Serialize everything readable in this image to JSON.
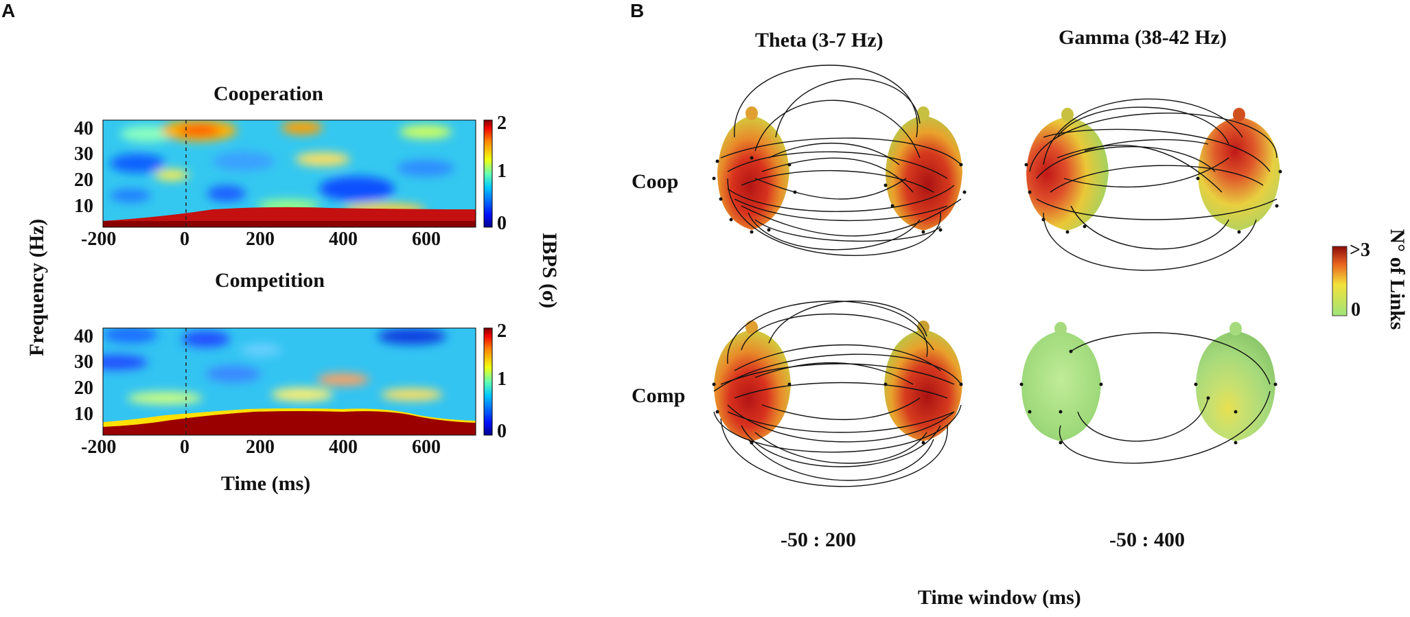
{
  "panelA": {
    "letter": "A",
    "y_axis_label": "Frequency (Hz)",
    "x_axis_label": "Time (ms)",
    "colorbar_label": "IBPS (σ)",
    "y_ticks": [
      "40",
      "30",
      "20",
      "10"
    ],
    "x_ticks": [
      "-200",
      "0",
      "200",
      "400",
      "600"
    ],
    "colorbar_ticks": [
      "2",
      "1",
      "0"
    ],
    "top_title": "Cooperation",
    "bottom_title": "Competition"
  },
  "panelB": {
    "letter": "B",
    "col1_title": "Theta (3-7 Hz)",
    "col2_title": "Gamma (38-42 Hz)",
    "row1_label": "Coop",
    "row2_label": "Comp",
    "col1_window": "-50 : 200",
    "col2_window": "-50 : 400",
    "x_axis_label": "Time window (ms)",
    "colorbar_label": "N° of Links",
    "colorbar_top": ">3",
    "colorbar_bottom": "0"
  },
  "chart_data": [
    {
      "type": "heatmap",
      "title": "Cooperation",
      "xlabel": "Time (ms)",
      "ylabel": "Frequency (Hz)",
      "xlim": [
        -200,
        700
      ],
      "ylim": [
        2,
        45
      ],
      "colorbar": {
        "label": "IBPS (σ)",
        "range": [
          0,
          2
        ]
      }
    },
    {
      "type": "heatmap",
      "title": "Competition",
      "xlabel": "Time (ms)",
      "ylabel": "Frequency (Hz)",
      "xlim": [
        -200,
        700
      ],
      "ylim": [
        2,
        45
      ],
      "colorbar": {
        "label": "IBPS (σ)",
        "range": [
          0,
          2
        ]
      }
    }
  ]
}
